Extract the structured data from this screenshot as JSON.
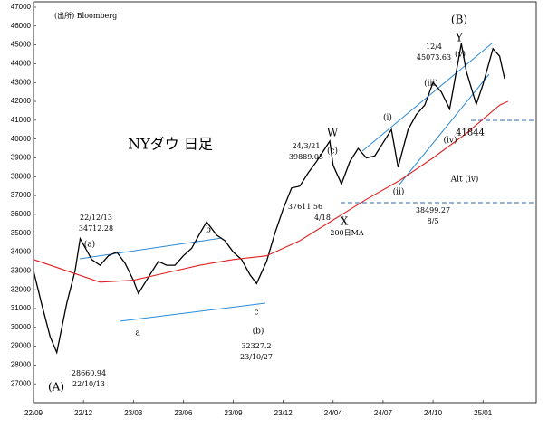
{
  "chart_data": {
    "type": "line",
    "xlim": [
      0,
      30.2
    ],
    "ylim": [
      26000,
      47000
    ],
    "xticks": [
      {
        "value": 0,
        "label": "22/09"
      },
      {
        "value": 3,
        "label": "22/12"
      },
      {
        "value": 6,
        "label": "23/03"
      },
      {
        "value": 9,
        "label": "23/06"
      },
      {
        "value": 12,
        "label": "23/09"
      },
      {
        "value": 15,
        "label": "23/12"
      },
      {
        "value": 18,
        "label": "24/04"
      },
      {
        "value": 21,
        "label": "24/07"
      },
      {
        "value": 24,
        "label": "24/10"
      },
      {
        "value": 27,
        "label": "25/01"
      }
    ],
    "yticks": [
      27000,
      28000,
      29000,
      30000,
      31000,
      32000,
      33000,
      34000,
      35000,
      36000,
      37000,
      38000,
      39000,
      40000,
      41000,
      42000,
      43000,
      44000,
      45000,
      46000,
      47000
    ],
    "series": [
      {
        "color": "#000000",
        "x": [
          0,
          0.5,
          1,
          1.4,
          2,
          2.5,
          2.8,
          3.5,
          4,
          4.5,
          5,
          5.5,
          6,
          6.3,
          7,
          7.5,
          8,
          8.5,
          9,
          9.5,
          10,
          10.4,
          11,
          11.5,
          12,
          12.5,
          13,
          13.4,
          14,
          14.5,
          15,
          15.5,
          16,
          16.5,
          17,
          17.8,
          18,
          18.5,
          19,
          19.5,
          20,
          20.5,
          21,
          21.5,
          21.9,
          22.5,
          23,
          23.5,
          24,
          24.5,
          25,
          25.7,
          26,
          26.6,
          27,
          27.6,
          28,
          28.3
        ],
        "values": [
          33000,
          31200,
          29500,
          28661,
          31300,
          33000,
          34712,
          33600,
          33300,
          33800,
          34000,
          33400,
          32500,
          31800,
          32800,
          33500,
          33300,
          33300,
          33800,
          34200,
          35000,
          35600,
          34900,
          34600,
          34000,
          33600,
          32800,
          32327,
          33500,
          35000,
          36300,
          37400,
          37500,
          38200,
          38800,
          39889,
          38600,
          37612,
          38800,
          39500,
          39000,
          39100,
          39800,
          40500,
          38499,
          40500,
          41300,
          41800,
          43000,
          42500,
          41600,
          45074,
          43600,
          41844,
          42900,
          44800,
          44400,
          43200
        ]
      },
      {
        "color": "#e02020",
        "x": [
          0,
          2,
          4,
          6,
          8,
          10,
          12,
          14,
          16,
          18,
          20,
          22,
          24,
          26,
          28,
          28.5
        ],
        "values": [
          33600,
          33000,
          32400,
          32500,
          32900,
          33300,
          33600,
          33800,
          34600,
          35700,
          36800,
          37800,
          39000,
          40300,
          41800,
          42000
        ]
      }
    ],
    "annotations": [
      "(出所) Bloomberg",
      "NYダウ 日足",
      "(B)",
      "Y",
      "12/4",
      "45073.63",
      "(v)",
      "(iii)",
      "(i)",
      "(iv)",
      "41844",
      "W",
      "(c)",
      "24/3/21",
      "39889.05",
      "Alt (iv)",
      "(ii)",
      "37611.56",
      "4/18",
      "X",
      "38499.27",
      "8/5",
      "200日MA",
      "22/12/13",
      "34712.28",
      "(a)",
      "b",
      "a",
      "c",
      "(b)",
      "32327.2",
      "23/10/27",
      "28660.94",
      "22/10/13",
      "(A)"
    ]
  }
}
